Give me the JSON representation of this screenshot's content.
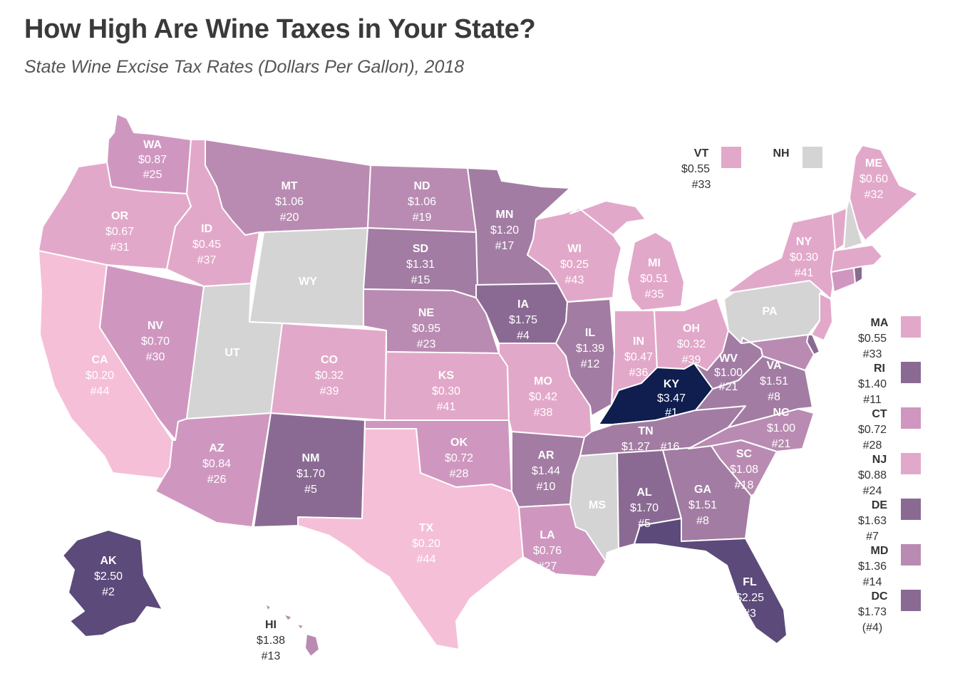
{
  "title": "How High Are Wine Taxes in Your State?",
  "subtitle": "State Wine Excise Tax Rates (Dollars Per Gallon), 2018",
  "colors": {
    "no_data": "#d4d4d4",
    "lightest": "#f5bfd8",
    "light": "#e2a8c9",
    "mid_light": "#cf97bf",
    "mid": "#b98bb2",
    "mid_dark": "#a27ca3",
    "dark": "#8a6a93",
    "darker": "#5b4a7a",
    "darkest": "#0f1d4f"
  },
  "states": {
    "WA": {
      "abbr": "WA",
      "rate": "$0.87",
      "rank": "#25"
    },
    "OR": {
      "abbr": "OR",
      "rate": "$0.67",
      "rank": "#31"
    },
    "CA": {
      "abbr": "CA",
      "rate": "$0.20",
      "rank": "#44"
    },
    "ID": {
      "abbr": "ID",
      "rate": "$0.45",
      "rank": "#37"
    },
    "NV": {
      "abbr": "NV",
      "rate": "$0.70",
      "rank": "#30"
    },
    "MT": {
      "abbr": "MT",
      "rate": "$1.06",
      "rank": "#20"
    },
    "WY": {
      "abbr": "WY"
    },
    "UT": {
      "abbr": "UT"
    },
    "AZ": {
      "abbr": "AZ",
      "rate": "$0.84",
      "rank": "#26"
    },
    "CO": {
      "abbr": "CO",
      "rate": "$0.32",
      "rank": "#39"
    },
    "NM": {
      "abbr": "NM",
      "rate": "$1.70",
      "rank": "#5"
    },
    "ND": {
      "abbr": "ND",
      "rate": "$1.06",
      "rank": "#19"
    },
    "SD": {
      "abbr": "SD",
      "rate": "$1.31",
      "rank": "#15"
    },
    "NE": {
      "abbr": "NE",
      "rate": "$0.95",
      "rank": "#23"
    },
    "KS": {
      "abbr": "KS",
      "rate": "$0.30",
      "rank": "#41"
    },
    "OK": {
      "abbr": "OK",
      "rate": "$0.72",
      "rank": "#28"
    },
    "TX": {
      "abbr": "TX",
      "rate": "$0.20",
      "rank": "#44"
    },
    "MN": {
      "abbr": "MN",
      "rate": "$1.20",
      "rank": "#17"
    },
    "IA": {
      "abbr": "IA",
      "rate": "$1.75",
      "rank": "#4"
    },
    "MO": {
      "abbr": "MO",
      "rate": "$0.42",
      "rank": "#38"
    },
    "AR": {
      "abbr": "AR",
      "rate": "$1.44",
      "rank": "#10"
    },
    "LA": {
      "abbr": "LA",
      "rate": "$0.76",
      "rank": "#27"
    },
    "WI": {
      "abbr": "WI",
      "rate": "$0.25",
      "rank": "#43"
    },
    "IL": {
      "abbr": "IL",
      "rate": "$1.39",
      "rank": "#12"
    },
    "MI": {
      "abbr": "MI",
      "rate": "$0.51",
      "rank": "#35"
    },
    "IN": {
      "abbr": "IN",
      "rate": "$0.47",
      "rank": "#36"
    },
    "OH": {
      "abbr": "OH",
      "rate": "$0.32",
      "rank": "#39"
    },
    "KY": {
      "abbr": "KY",
      "rate": "$3.47",
      "rank": "#1"
    },
    "TN": {
      "abbr": "TN",
      "rate": "$1.27",
      "rank": "#16"
    },
    "MS": {
      "abbr": "MS"
    },
    "AL": {
      "abbr": "AL",
      "rate": "$1.70",
      "rank": "#5"
    },
    "GA": {
      "abbr": "GA",
      "rate": "$1.51",
      "rank": "#8"
    },
    "FL": {
      "abbr": "FL",
      "rate": "$2.25",
      "rank": "#3"
    },
    "SC": {
      "abbr": "SC",
      "rate": "$1.08",
      "rank": "#18"
    },
    "NC": {
      "abbr": "NC",
      "rate": "$1.00",
      "rank": "#21"
    },
    "VA": {
      "abbr": "VA",
      "rate": "$1.51",
      "rank": "#8"
    },
    "WV": {
      "abbr": "WV",
      "rate": "$1.00",
      "rank": "#21"
    },
    "PA": {
      "abbr": "PA"
    },
    "NY": {
      "abbr": "NY",
      "rate": "$0.30",
      "rank": "#41"
    },
    "ME": {
      "abbr": "ME",
      "rate": "$0.60",
      "rank": "#32"
    },
    "VT": {
      "abbr": "VT",
      "rate": "$0.55",
      "rank": "#33"
    },
    "NH": {
      "abbr": "NH"
    },
    "AK": {
      "abbr": "AK",
      "rate": "$2.50",
      "rank": "#2"
    },
    "HI": {
      "abbr": "HI",
      "rate": "$1.38",
      "rank": "#13"
    }
  },
  "side_legend": [
    {
      "abbr": "MA",
      "rate": "$0.55",
      "rank": "#33"
    },
    {
      "abbr": "RI",
      "rate": "$1.40",
      "rank": "#11"
    },
    {
      "abbr": "CT",
      "rate": "$0.72",
      "rank": "#28"
    },
    {
      "abbr": "NJ",
      "rate": "$0.88",
      "rank": "#24"
    },
    {
      "abbr": "DE",
      "rate": "$1.63",
      "rank": "#7"
    },
    {
      "abbr": "MD",
      "rate": "$1.36",
      "rank": "#14"
    },
    {
      "abbr": "DC",
      "rate": "$1.73",
      "rank": "(#4)"
    }
  ]
}
